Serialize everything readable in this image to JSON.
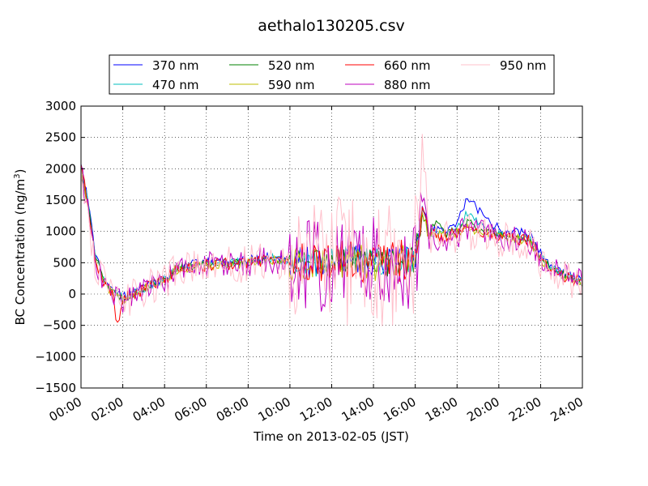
{
  "chart_data": {
    "type": "line",
    "title": "aethalo130205.csv",
    "xlabel": "Time on 2013-02-05 (JST)",
    "ylabel": "BC Concentration (ng/m",
    "ylabel_superscript": "3",
    "ylabel_suffix": ")",
    "xlim": [
      "00:00",
      "24:00"
    ],
    "ylim": [
      -1500,
      3000
    ],
    "x_ticks": [
      "00:00",
      "02:00",
      "04:00",
      "06:00",
      "08:00",
      "10:00",
      "12:00",
      "14:00",
      "16:00",
      "18:00",
      "20:00",
      "22:00",
      "24:00"
    ],
    "y_ticks": [
      "3000",
      "2500",
      "2000",
      "1500",
      "1000",
      "500",
      "0",
      "−500",
      "−1000",
      "−1500"
    ],
    "grid": true,
    "legend_position": "top",
    "series": [
      {
        "name": "370 nm",
        "color": "#0000ff",
        "noise": 70,
        "points": [
          [
            "00:00",
            2100
          ],
          [
            "00:20",
            1500
          ],
          [
            "00:40",
            700
          ],
          [
            "01:00",
            300
          ],
          [
            "01:30",
            50
          ],
          [
            "02:00",
            -50
          ],
          [
            "02:30",
            30
          ],
          [
            "03:00",
            100
          ],
          [
            "03:30",
            180
          ],
          [
            "04:00",
            240
          ],
          [
            "04:30",
            420
          ],
          [
            "05:00",
            460
          ],
          [
            "06:00",
            500
          ],
          [
            "07:00",
            520
          ],
          [
            "08:00",
            550
          ],
          [
            "09:00",
            600
          ],
          [
            "10:00",
            550
          ],
          [
            "11:00",
            500
          ],
          [
            "12:00",
            560
          ],
          [
            "13:00",
            600
          ],
          [
            "14:00",
            520
          ],
          [
            "15:00",
            550
          ],
          [
            "16:00",
            600
          ],
          [
            "16:20",
            1400
          ],
          [
            "16:40",
            1000
          ],
          [
            "17:00",
            1050
          ],
          [
            "17:30",
            1000
          ],
          [
            "18:00",
            1150
          ],
          [
            "18:30",
            1550
          ],
          [
            "19:00",
            1350
          ],
          [
            "19:30",
            1150
          ],
          [
            "20:00",
            1050
          ],
          [
            "20:30",
            1000
          ],
          [
            "21:00",
            1000
          ],
          [
            "21:30",
            950
          ],
          [
            "22:00",
            650
          ],
          [
            "22:30",
            450
          ],
          [
            "23:00",
            350
          ],
          [
            "23:40",
            250
          ],
          [
            "24:00",
            220
          ]
        ]
      },
      {
        "name": "470 nm",
        "color": "#00bfbf",
        "noise": 65,
        "points": [
          [
            "00:00",
            2050
          ],
          [
            "00:20",
            1450
          ],
          [
            "00:40",
            650
          ],
          [
            "01:00",
            280
          ],
          [
            "01:30",
            40
          ],
          [
            "02:00",
            -60
          ],
          [
            "02:30",
            20
          ],
          [
            "03:00",
            90
          ],
          [
            "03:30",
            170
          ],
          [
            "04:00",
            230
          ],
          [
            "04:30",
            400
          ],
          [
            "05:00",
            440
          ],
          [
            "06:00",
            480
          ],
          [
            "07:00",
            500
          ],
          [
            "08:00",
            520
          ],
          [
            "09:00",
            580
          ],
          [
            "10:00",
            530
          ],
          [
            "11:00",
            480
          ],
          [
            "12:00",
            540
          ],
          [
            "13:00",
            580
          ],
          [
            "14:00",
            500
          ],
          [
            "15:00",
            520
          ],
          [
            "16:00",
            580
          ],
          [
            "16:20",
            1350
          ],
          [
            "16:40",
            950
          ],
          [
            "17:00",
            1000
          ],
          [
            "17:30",
            950
          ],
          [
            "18:00",
            1050
          ],
          [
            "18:30",
            1300
          ],
          [
            "19:00",
            1150
          ],
          [
            "19:30",
            1050
          ],
          [
            "20:00",
            950
          ],
          [
            "20:30",
            920
          ],
          [
            "21:00",
            900
          ],
          [
            "21:30",
            880
          ],
          [
            "22:00",
            600
          ],
          [
            "22:30",
            420
          ],
          [
            "23:00",
            330
          ],
          [
            "23:40",
            230
          ],
          [
            "24:00",
            200
          ]
        ]
      },
      {
        "name": "520 nm",
        "color": "#008000",
        "noise": 65,
        "points": [
          [
            "00:00",
            2000
          ],
          [
            "00:20",
            1400
          ],
          [
            "00:40",
            650
          ],
          [
            "01:00",
            280
          ],
          [
            "01:30",
            30
          ],
          [
            "02:00",
            -80
          ],
          [
            "02:30",
            10
          ],
          [
            "03:00",
            80
          ],
          [
            "03:30",
            160
          ],
          [
            "04:00",
            220
          ],
          [
            "04:30",
            390
          ],
          [
            "05:00",
            430
          ],
          [
            "06:00",
            470
          ],
          [
            "07:00",
            490
          ],
          [
            "08:00",
            510
          ],
          [
            "09:00",
            570
          ],
          [
            "10:00",
            520
          ],
          [
            "11:00",
            470
          ],
          [
            "12:00",
            530
          ],
          [
            "13:00",
            570
          ],
          [
            "14:00",
            490
          ],
          [
            "15:00",
            510
          ],
          [
            "16:00",
            570
          ],
          [
            "16:20",
            1300
          ],
          [
            "16:40",
            950
          ],
          [
            "17:00",
            1150
          ],
          [
            "17:30",
            950
          ],
          [
            "18:00",
            1000
          ],
          [
            "18:30",
            1150
          ],
          [
            "19:00",
            1050
          ],
          [
            "19:30",
            1000
          ],
          [
            "20:00",
            930
          ],
          [
            "20:30",
            900
          ],
          [
            "21:00",
            880
          ],
          [
            "21:30",
            860
          ],
          [
            "22:00",
            580
          ],
          [
            "22:30",
            400
          ],
          [
            "23:00",
            320
          ],
          [
            "23:40",
            220
          ],
          [
            "24:00",
            190
          ]
        ]
      },
      {
        "name": "590 nm",
        "color": "#bfbf00",
        "noise": 80,
        "points": [
          [
            "00:00",
            2000
          ],
          [
            "00:20",
            1400
          ],
          [
            "00:40",
            600
          ],
          [
            "01:00",
            250
          ],
          [
            "01:30",
            20
          ],
          [
            "02:00",
            -90
          ],
          [
            "02:30",
            0
          ],
          [
            "03:00",
            80
          ],
          [
            "03:30",
            160
          ],
          [
            "04:00",
            220
          ],
          [
            "04:30",
            380
          ],
          [
            "05:00",
            420
          ],
          [
            "06:00",
            460
          ],
          [
            "07:00",
            480
          ],
          [
            "08:00",
            500
          ],
          [
            "09:00",
            560
          ],
          [
            "10:00",
            510
          ],
          [
            "11:00",
            460
          ],
          [
            "12:00",
            520
          ],
          [
            "13:00",
            560
          ],
          [
            "14:00",
            480
          ],
          [
            "15:00",
            500
          ],
          [
            "16:00",
            560
          ],
          [
            "16:20",
            1300
          ],
          [
            "16:40",
            900
          ],
          [
            "17:00",
            950
          ],
          [
            "17:30",
            930
          ],
          [
            "18:00",
            980
          ],
          [
            "18:30",
            1100
          ],
          [
            "19:00",
            1000
          ],
          [
            "19:30",
            980
          ],
          [
            "20:00",
            920
          ],
          [
            "20:30",
            890
          ],
          [
            "21:00",
            870
          ],
          [
            "21:30",
            850
          ],
          [
            "22:00",
            570
          ],
          [
            "22:30",
            390
          ],
          [
            "23:00",
            310
          ],
          [
            "23:40",
            220
          ],
          [
            "24:00",
            180
          ]
        ]
      },
      {
        "name": "660 nm",
        "color": "#ff0000",
        "noise": 100,
        "points": [
          [
            "00:00",
            2050
          ],
          [
            "00:20",
            1450
          ],
          [
            "00:40",
            600
          ],
          [
            "01:00",
            250
          ],
          [
            "01:30",
            0
          ],
          [
            "01:45",
            -500
          ],
          [
            "02:00",
            -100
          ],
          [
            "02:30",
            0
          ],
          [
            "03:00",
            80
          ],
          [
            "03:30",
            160
          ],
          [
            "04:00",
            220
          ],
          [
            "04:30",
            380
          ],
          [
            "05:00",
            420
          ],
          [
            "06:00",
            460
          ],
          [
            "07:00",
            480
          ],
          [
            "08:00",
            500
          ],
          [
            "09:00",
            560
          ],
          [
            "10:00",
            510
          ],
          [
            "11:00",
            460
          ],
          [
            "12:00",
            520
          ],
          [
            "13:00",
            560
          ],
          [
            "14:00",
            480
          ],
          [
            "15:00",
            500
          ],
          [
            "16:00",
            560
          ],
          [
            "16:20",
            1400
          ],
          [
            "16:40",
            900
          ],
          [
            "17:00",
            950
          ],
          [
            "17:30",
            930
          ],
          [
            "18:00",
            980
          ],
          [
            "18:30",
            1100
          ],
          [
            "19:00",
            1000
          ],
          [
            "19:30",
            980
          ],
          [
            "20:00",
            920
          ],
          [
            "20:30",
            890
          ],
          [
            "21:00",
            870
          ],
          [
            "21:30",
            850
          ],
          [
            "22:00",
            570
          ],
          [
            "22:30",
            390
          ],
          [
            "23:00",
            310
          ],
          [
            "23:40",
            220
          ],
          [
            "24:00",
            180
          ]
        ]
      },
      {
        "name": "880 nm",
        "color": "#bf00bf",
        "noise": 220,
        "points": [
          [
            "00:00",
            1950
          ],
          [
            "00:20",
            1350
          ],
          [
            "00:40",
            550
          ],
          [
            "01:00",
            230
          ],
          [
            "01:30",
            0
          ],
          [
            "02:00",
            -100
          ],
          [
            "02:30",
            0
          ],
          [
            "03:00",
            70
          ],
          [
            "03:30",
            150
          ],
          [
            "04:00",
            210
          ],
          [
            "04:30",
            370
          ],
          [
            "05:00",
            410
          ],
          [
            "06:00",
            450
          ],
          [
            "07:00",
            470
          ],
          [
            "08:00",
            490
          ],
          [
            "09:00",
            550
          ],
          [
            "10:00",
            500
          ],
          [
            "11:00",
            450
          ],
          [
            "12:00",
            510
          ],
          [
            "13:00",
            550
          ],
          [
            "14:00",
            470
          ],
          [
            "15:00",
            490
          ],
          [
            "16:00",
            550
          ],
          [
            "16:20",
            1500
          ],
          [
            "16:40",
            900
          ],
          [
            "17:00",
            920
          ],
          [
            "17:30",
            900
          ],
          [
            "18:00",
            950
          ],
          [
            "18:30",
            1050
          ],
          [
            "19:00",
            980
          ],
          [
            "19:30",
            950
          ],
          [
            "20:00",
            900
          ],
          [
            "20:30",
            870
          ],
          [
            "21:00",
            850
          ],
          [
            "21:30",
            830
          ],
          [
            "22:00",
            560
          ],
          [
            "22:30",
            380
          ],
          [
            "23:00",
            300
          ],
          [
            "23:40",
            210
          ],
          [
            "24:00",
            170
          ]
        ]
      },
      {
        "name": "950 nm",
        "color": "#ffc0cb",
        "noise": 300,
        "points": [
          [
            "00:00",
            1900
          ],
          [
            "00:20",
            1300
          ],
          [
            "00:40",
            500
          ],
          [
            "01:00",
            200
          ],
          [
            "01:30",
            -50
          ],
          [
            "02:00",
            -100
          ],
          [
            "02:30",
            -50
          ],
          [
            "03:00",
            60
          ],
          [
            "03:30",
            140
          ],
          [
            "04:00",
            200
          ],
          [
            "04:30",
            360
          ],
          [
            "05:00",
            400
          ],
          [
            "06:00",
            440
          ],
          [
            "07:00",
            460
          ],
          [
            "08:00",
            480
          ],
          [
            "09:00",
            540
          ],
          [
            "10:00",
            490
          ],
          [
            "11:00",
            440
          ],
          [
            "12:00",
            500
          ],
          [
            "13:00",
            540
          ],
          [
            "14:00",
            460
          ],
          [
            "15:00",
            480
          ],
          [
            "16:00",
            540
          ],
          [
            "16:20",
            2600
          ],
          [
            "16:40",
            850
          ],
          [
            "17:00",
            900
          ],
          [
            "17:30",
            880
          ],
          [
            "18:00",
            930
          ],
          [
            "18:30",
            1000
          ],
          [
            "19:00",
            960
          ],
          [
            "19:30",
            930
          ],
          [
            "20:00",
            880
          ],
          [
            "20:30",
            850
          ],
          [
            "21:00",
            830
          ],
          [
            "21:30",
            810
          ],
          [
            "22:00",
            550
          ],
          [
            "22:30",
            370
          ],
          [
            "23:00",
            290
          ],
          [
            "23:40",
            200
          ],
          [
            "24:00",
            160
          ]
        ]
      }
    ]
  }
}
